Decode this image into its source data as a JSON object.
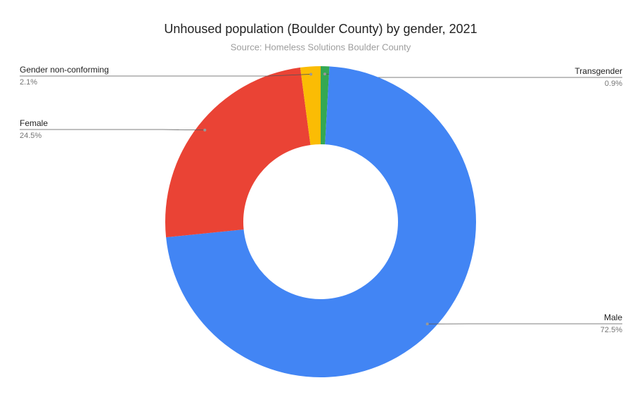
{
  "chart_data": {
    "type": "donut",
    "title": "Unhoused population (Boulder County) by gender, 2021",
    "subtitle": "Source: Homeless Solutions Boulder County",
    "categories": [
      "Transgender",
      "Male",
      "Female",
      "Gender non-conforming"
    ],
    "values": [
      0.9,
      72.5,
      24.5,
      2.1
    ],
    "value_labels": [
      "0.9%",
      "72.5%",
      "24.5%",
      "2.1%"
    ],
    "colors": [
      "#34a853",
      "#4285f4",
      "#ea4335",
      "#fbbc04"
    ]
  }
}
